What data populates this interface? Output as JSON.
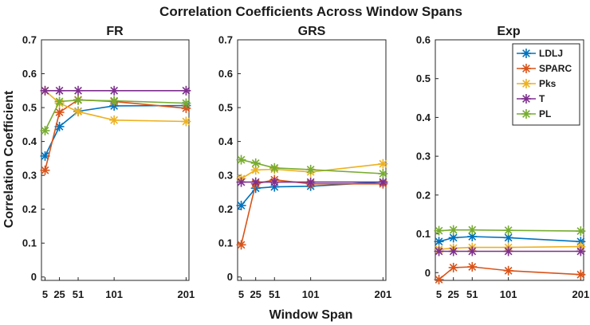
{
  "chart_data": {
    "type": "line",
    "title": "Correlation Coefficients Across Window Spans",
    "xlabel": "Window Span",
    "ylabel": "Correlation Coefficient",
    "x": [
      5,
      25,
      51,
      101,
      201
    ],
    "xticks": [
      "5",
      "25",
      "51",
      "101",
      "201"
    ],
    "xlim": [
      0,
      205
    ],
    "colors": {
      "LDLJ": "#0072bd",
      "SPARC": "#d95319",
      "Pks": "#edb120",
      "T": "#7e2f8e",
      "PL": "#77ac30"
    },
    "legend": {
      "location": "top-right",
      "panel": "Exp",
      "entries": [
        "LDLJ",
        "SPARC",
        "Pks",
        "T",
        "PL"
      ]
    },
    "panels": [
      {
        "title": "FR",
        "ylim": [
          -0.01,
          0.7
        ],
        "yticks": [
          "0",
          "0.1",
          "0.2",
          "0.3",
          "0.4",
          "0.5",
          "0.6",
          "0.7"
        ],
        "series": [
          {
            "name": "LDLJ",
            "values": [
              0.357,
              0.444,
              0.489,
              0.505,
              0.506
            ]
          },
          {
            "name": "SPARC",
            "values": [
              0.315,
              0.486,
              0.523,
              0.518,
              0.498
            ]
          },
          {
            "name": "Pks",
            "values": [
              0.55,
              0.513,
              0.488,
              0.463,
              0.459
            ]
          },
          {
            "name": "T",
            "values": [
              0.55,
              0.55,
              0.55,
              0.55,
              0.55
            ]
          },
          {
            "name": "PL",
            "values": [
              0.432,
              0.518,
              0.522,
              0.52,
              0.513
            ]
          }
        ]
      },
      {
        "title": "GRS",
        "ylim": [
          -0.01,
          0.7
        ],
        "yticks": [
          "0",
          "0.1",
          "0.2",
          "0.3",
          "0.4",
          "0.5",
          "0.6",
          "0.7"
        ],
        "series": [
          {
            "name": "LDLJ",
            "values": [
              0.211,
              0.262,
              0.266,
              0.268,
              0.28
            ]
          },
          {
            "name": "SPARC",
            "values": [
              0.095,
              0.275,
              0.287,
              0.275,
              0.275
            ]
          },
          {
            "name": "Pks",
            "values": [
              0.29,
              0.316,
              0.318,
              0.31,
              0.334
            ]
          },
          {
            "name": "T",
            "values": [
              0.28,
              0.28,
              0.28,
              0.28,
              0.28
            ]
          },
          {
            "name": "PL",
            "values": [
              0.346,
              0.336,
              0.322,
              0.317,
              0.305
            ]
          }
        ]
      },
      {
        "title": "Exp",
        "ylim": [
          -0.02,
          0.6
        ],
        "yticks": [
          "0",
          "0.1",
          "0.2",
          "0.3",
          "0.4",
          "0.5",
          "0.6"
        ],
        "series": [
          {
            "name": "LDLJ",
            "values": [
              0.08,
              0.09,
              0.093,
              0.09,
              0.08
            ]
          },
          {
            "name": "SPARC",
            "values": [
              -0.018,
              0.013,
              0.015,
              0.005,
              -0.005
            ]
          },
          {
            "name": "Pks",
            "values": [
              0.06,
              0.063,
              0.065,
              0.065,
              0.067
            ]
          },
          {
            "name": "T",
            "values": [
              0.055,
              0.055,
              0.055,
              0.055,
              0.055
            ]
          },
          {
            "name": "PL",
            "values": [
              0.108,
              0.11,
              0.11,
              0.109,
              0.107
            ]
          }
        ]
      }
    ]
  }
}
